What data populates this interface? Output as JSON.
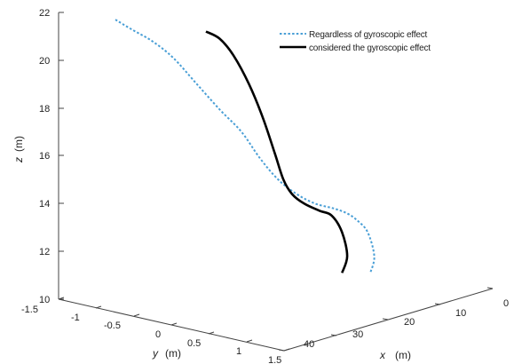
{
  "chart_data": {
    "type": "line3d",
    "title": "",
    "axes": {
      "x": {
        "label": "x",
        "unit": "(m)",
        "lim": [
          0,
          40
        ],
        "ticks": [
          "0",
          "10",
          "20",
          "30",
          "40"
        ]
      },
      "y": {
        "label": "y",
        "unit": "(m)",
        "lim": [
          -1.5,
          1.5
        ],
        "ticks": [
          "-1.5",
          "-1",
          "-0.5",
          "0",
          "0.5",
          "1",
          "1.5"
        ]
      },
      "z": {
        "label": "z",
        "unit": "(m)",
        "lim": [
          10,
          22
        ],
        "ticks": [
          "10",
          "12",
          "14",
          "16",
          "18",
          "20",
          "22"
        ]
      }
    },
    "grid": false,
    "legend_position": "top-right",
    "series": [
      {
        "name": "Regardless of gyroscopic effect",
        "style": "dotted",
        "color": "#4a9fd6",
        "screen_trace": [
          [
            0.0,
            21.7
          ],
          [
            0.06,
            21.3
          ],
          [
            0.14,
            20.8
          ],
          [
            0.22,
            20.1
          ],
          [
            0.31,
            19.0
          ],
          [
            0.4,
            17.9
          ],
          [
            0.48,
            17.0
          ],
          [
            0.55,
            15.9
          ],
          [
            0.62,
            15.0
          ],
          [
            0.69,
            14.4
          ],
          [
            0.76,
            14.0
          ],
          [
            0.83,
            13.8
          ],
          [
            0.88,
            13.6
          ],
          [
            0.92,
            13.3
          ],
          [
            0.96,
            12.8
          ],
          [
            0.985,
            11.8
          ],
          [
            0.97,
            11.1
          ]
        ]
      },
      {
        "name": "considered the gyroscopic effect",
        "style": "solid",
        "color": "#000000",
        "screen_trace": [
          [
            0.0,
            21.2
          ],
          [
            0.08,
            20.9
          ],
          [
            0.16,
            20.2
          ],
          [
            0.25,
            19.0
          ],
          [
            0.33,
            17.6
          ],
          [
            0.4,
            16.1
          ],
          [
            0.45,
            15.0
          ],
          [
            0.5,
            14.4
          ],
          [
            0.57,
            14.0
          ],
          [
            0.66,
            13.7
          ],
          [
            0.73,
            13.5
          ],
          [
            0.79,
            12.8
          ],
          [
            0.82,
            11.8
          ],
          [
            0.79,
            11.1
          ]
        ]
      }
    ]
  }
}
